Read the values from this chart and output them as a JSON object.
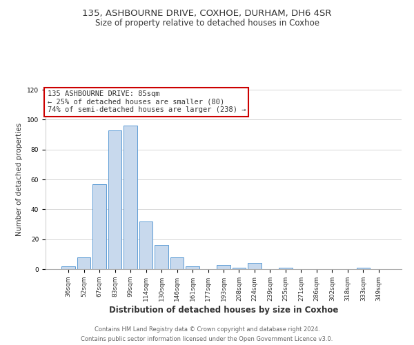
{
  "title1": "135, ASHBOURNE DRIVE, COXHOE, DURHAM, DH6 4SR",
  "title2": "Size of property relative to detached houses in Coxhoe",
  "xlabel": "Distribution of detached houses by size in Coxhoe",
  "ylabel": "Number of detached properties",
  "bar_labels": [
    "36sqm",
    "52sqm",
    "67sqm",
    "83sqm",
    "99sqm",
    "114sqm",
    "130sqm",
    "146sqm",
    "161sqm",
    "177sqm",
    "193sqm",
    "208sqm",
    "224sqm",
    "239sqm",
    "255sqm",
    "271sqm",
    "286sqm",
    "302sqm",
    "318sqm",
    "333sqm",
    "349sqm"
  ],
  "bar_values": [
    2,
    8,
    57,
    93,
    96,
    32,
    16,
    8,
    2,
    0,
    3,
    1,
    4,
    0,
    1,
    0,
    0,
    0,
    0,
    1,
    0
  ],
  "bar_color": "#c8d9ed",
  "bar_edge_color": "#5b9bd5",
  "ylim": [
    0,
    120
  ],
  "yticks": [
    0,
    20,
    40,
    60,
    80,
    100,
    120
  ],
  "annotation_box_text": "135 ASHBOURNE DRIVE: 85sqm\n← 25% of detached houses are smaller (80)\n74% of semi-detached houses are larger (238) →",
  "annotation_box_color": "#ffffff",
  "annotation_box_edge_color": "#cc0000",
  "footer_line1": "Contains HM Land Registry data © Crown copyright and database right 2024.",
  "footer_line2": "Contains public sector information licensed under the Open Government Licence v3.0.",
  "background_color": "#ffffff",
  "grid_color": "#d0d0d0",
  "title1_fontsize": 9.5,
  "title2_fontsize": 8.5,
  "xlabel_fontsize": 8.5,
  "ylabel_fontsize": 7.5,
  "tick_fontsize": 6.5,
  "ann_fontsize": 7.5,
  "footer_fontsize": 6.0
}
